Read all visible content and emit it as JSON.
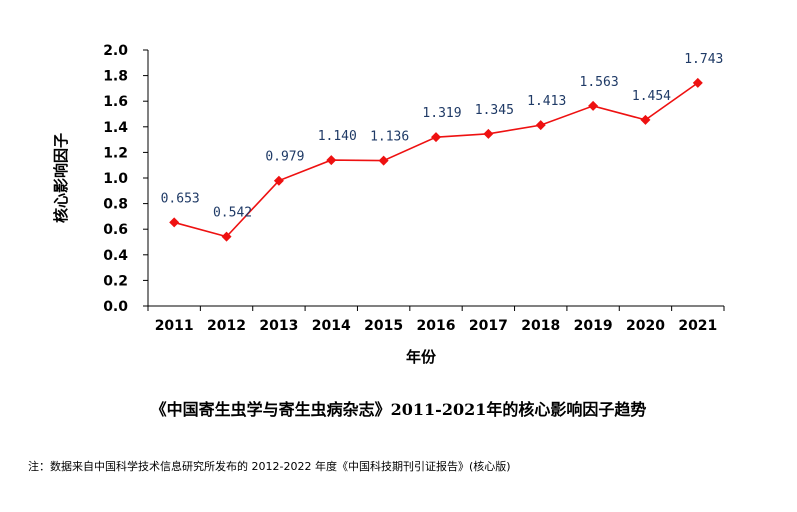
{
  "chart_data": {
    "type": "line",
    "title": "《中国寄生虫学与寄生虫病杂志》2011-2021年的核心影响因子趋势",
    "xlabel": "年份",
    "ylabel": "核心影响因子",
    "categories": [
      "2011",
      "2012",
      "2013",
      "2014",
      "2015",
      "2016",
      "2017",
      "2018",
      "2019",
      "2020",
      "2021"
    ],
    "series": [
      {
        "values": [
          0.653,
          0.542,
          0.979,
          1.14,
          1.136,
          1.319,
          1.345,
          1.413,
          1.563,
          1.454,
          1.743
        ]
      }
    ],
    "data_labels": [
      "0.653",
      "0.542",
      "0.979",
      "1.140",
      "1.136",
      "1.319",
      "1.345",
      "1.413",
      "1.563",
      "1.454",
      "1.743"
    ],
    "ylim": [
      0,
      2.0
    ],
    "yticks": [
      "0.0",
      "0.2",
      "0.4",
      "0.6",
      "0.8",
      "1.0",
      "1.2",
      "1.4",
      "1.6",
      "1.8",
      "2.0"
    ],
    "grid": false,
    "legend": "none",
    "line_color": "#ee1111",
    "marker": "diamond"
  },
  "footnote": "注：数据来自中国科学技术信息研究所发布的 2012-2022 年度《中国科技期刊引证报告》(核心版)"
}
